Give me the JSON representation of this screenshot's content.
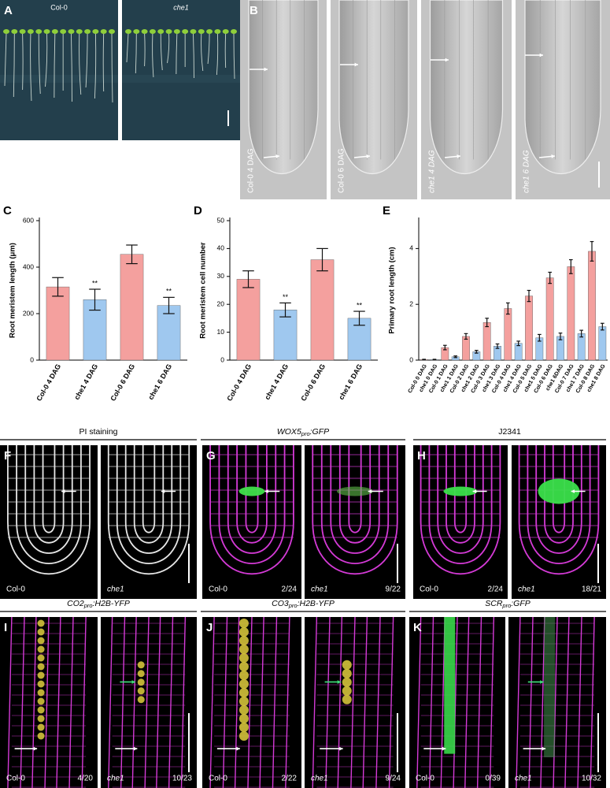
{
  "panels": [
    {
      "letter": "A",
      "images": [
        {
          "label": "Col-0"
        },
        {
          "label": "che1",
          "italic": true
        }
      ]
    },
    {
      "letter": "B",
      "images": [
        {
          "label": "Col-0 4 DAG"
        },
        {
          "label": "Col-0 6 DAG"
        },
        {
          "label": "che1 4 DAG",
          "italic": true
        },
        {
          "label": "che1 6 DAG",
          "italic": true
        }
      ]
    },
    {
      "letter": "F",
      "header": {
        "text": "PI staining"
      },
      "images": [
        {
          "label": "Col-0"
        },
        {
          "label": "che1",
          "italic": true
        }
      ]
    },
    {
      "letter": "G",
      "header": {
        "gene": "WOX5",
        "sub": "pro",
        "rest": ":GFP"
      },
      "images": [
        {
          "label": "Col-0",
          "ratio": "2/24"
        },
        {
          "label": "che1",
          "italic": true,
          "ratio": "9/22"
        }
      ]
    },
    {
      "letter": "H",
      "header": {
        "text": "J2341"
      },
      "images": [
        {
          "label": "Col-0",
          "ratio": "2/24"
        },
        {
          "label": "che1",
          "italic": true,
          "ratio": "18/21"
        }
      ]
    },
    {
      "letter": "I",
      "header": {
        "gene": "CO2",
        "sub": "pro",
        "rest": ":H2B-YFP"
      },
      "images": [
        {
          "label": "Col-0",
          "ratio": "4/20"
        },
        {
          "label": "che1",
          "italic": true,
          "ratio": "10/23"
        }
      ]
    },
    {
      "letter": "J",
      "header": {
        "gene": "CO3",
        "sub": "pro",
        "rest": ":H2B-YFP"
      },
      "images": [
        {
          "label": "Col-0",
          "ratio": "2/22"
        },
        {
          "label": "che1",
          "italic": true,
          "ratio": "9/24"
        }
      ]
    },
    {
      "letter": "K",
      "header": {
        "gene": "SCR",
        "sub": "pro",
        "rest": ":GFP"
      },
      "images": [
        {
          "label": "Col-0",
          "ratio": "0/39"
        },
        {
          "label": "che1",
          "italic": true,
          "ratio": "10/32"
        }
      ]
    }
  ],
  "chart_data": [
    {
      "type": "bar",
      "label": "C",
      "ylabel": "Root meristem length (μm)",
      "categories": [
        "Col-0 4 DAG",
        "che1 4 DAG",
        "Col-0 6 DAG",
        "che1 6 DAG"
      ],
      "values": [
        315,
        260,
        455,
        235
      ],
      "errors": [
        40,
        45,
        40,
        35
      ],
      "colors": [
        "#f4a09e",
        "#9fc8ef",
        "#f4a09e",
        "#9fc8ef"
      ],
      "annotations": [
        {
          "text": "**",
          "category": "che1 4 DAG"
        },
        {
          "text": "**",
          "category": "che1 6 DAG"
        }
      ],
      "ylim": [
        0,
        600
      ],
      "yticks": [
        0,
        200,
        400,
        600
      ]
    },
    {
      "type": "bar",
      "label": "D",
      "ylabel": "Root meristem cell number",
      "categories": [
        "Col-0 4 DAG",
        "che1 4 DAG",
        "Col-0 6 DAG",
        "che1 6 DAG"
      ],
      "values": [
        29,
        18,
        36,
        15
      ],
      "errors": [
        3,
        2.5,
        4,
        2.5
      ],
      "colors": [
        "#f4a09e",
        "#9fc8ef",
        "#f4a09e",
        "#9fc8ef"
      ],
      "annotations": [
        {
          "text": "**",
          "category": "che1 4 DAG"
        },
        {
          "text": "**",
          "category": "che1 6 DAG"
        }
      ],
      "ylim": [
        0,
        50
      ],
      "yticks": [
        0,
        10,
        20,
        30,
        40,
        50
      ]
    },
    {
      "type": "bar",
      "label": "E",
      "ylabel": "Primary root length (cm)",
      "categories": [
        "Col-0 0 DAG",
        "che1 0 DAG",
        "Col-0 1 DAG",
        "che1 1 DAG",
        "Col-0 2 DAG",
        "che1 2 DAG",
        "Col-0 3 DAG",
        "che1 3 DAG",
        "Col-0 4 DAG",
        "che1 4 DAG",
        "Col-0 5 DAG",
        "che1 5 DAG",
        "Col-0 6 DAG",
        "che1 6DAG",
        "Col-0 7 DAG",
        "che1 7 DAG",
        "Col-0 8 DAG",
        "che1 8 DAG"
      ],
      "values": [
        0.02,
        0.02,
        0.45,
        0.12,
        0.85,
        0.3,
        1.35,
        0.5,
        1.85,
        0.6,
        2.3,
        0.8,
        2.95,
        0.85,
        3.35,
        0.95,
        3.9,
        1.2
      ],
      "errors": [
        0.01,
        0.01,
        0.08,
        0.03,
        0.1,
        0.05,
        0.15,
        0.08,
        0.2,
        0.08,
        0.2,
        0.12,
        0.2,
        0.12,
        0.25,
        0.12,
        0.35,
        0.12
      ],
      "colors": [
        "#f4a09e",
        "#9fc8ef",
        "#f4a09e",
        "#9fc8ef",
        "#f4a09e",
        "#9fc8ef",
        "#f4a09e",
        "#9fc8ef",
        "#f4a09e",
        "#9fc8ef",
        "#f4a09e",
        "#9fc8ef",
        "#f4a09e",
        "#9fc8ef",
        "#f4a09e",
        "#9fc8ef",
        "#f4a09e",
        "#9fc8ef"
      ],
      "ylim": [
        0,
        5
      ],
      "yticks": [
        0,
        2,
        4
      ]
    }
  ]
}
